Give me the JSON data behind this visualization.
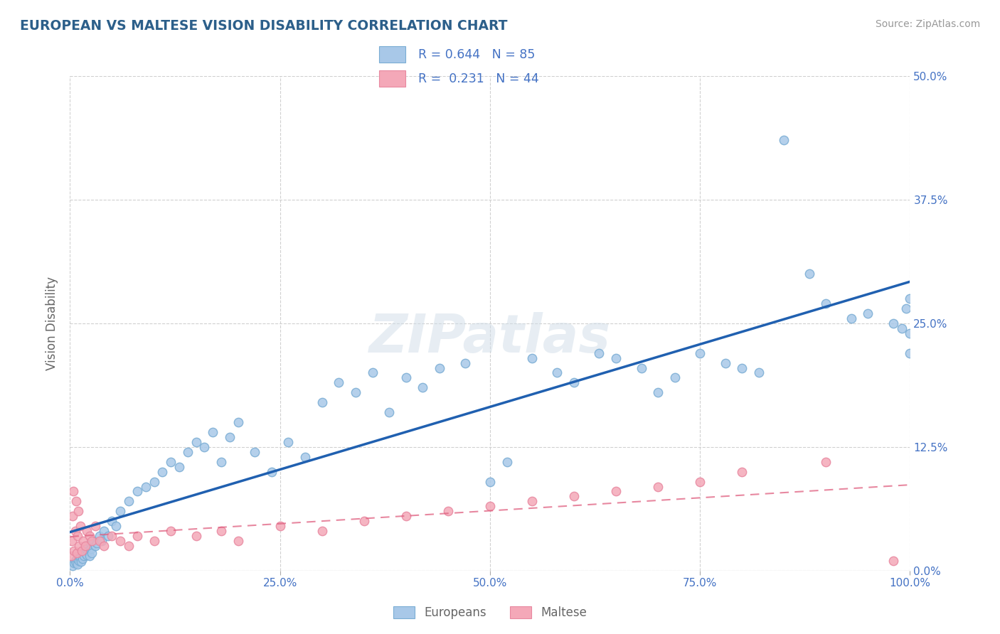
{
  "title": "EUROPEAN VS MALTESE VISION DISABILITY CORRELATION CHART",
  "source": "Source: ZipAtlas.com",
  "ylabel": "Vision Disability",
  "xlim": [
    0,
    100
  ],
  "ylim": [
    0,
    50
  ],
  "yticks": [
    0,
    12.5,
    25,
    37.5,
    50
  ],
  "xticks": [
    0,
    25,
    50,
    75,
    100
  ],
  "xtick_labels": [
    "0.0%",
    "25.0%",
    "50.0%",
    "75.0%",
    "100.0%"
  ],
  "ytick_labels": [
    "0.0%",
    "12.5%",
    "25.0%",
    "37.5%",
    "50.0%"
  ],
  "legend_labels": [
    "Europeans",
    "Maltese"
  ],
  "R_european": 0.644,
  "N_european": 85,
  "R_maltese": 0.231,
  "N_maltese": 44,
  "european_color": "#a8c8e8",
  "maltese_color": "#f4a8b8",
  "european_edge_color": "#7aadd4",
  "maltese_edge_color": "#e888a0",
  "european_line_color": "#2060b0",
  "maltese_line_color": "#e06080",
  "title_color": "#2c5f8a",
  "axis_label_color": "#666666",
  "tick_color": "#4472c4",
  "watermark": "ZIPatlas",
  "background_color": "#ffffff",
  "grid_color": "#d0d0d0",
  "eu_x": [
    0.3,
    0.5,
    0.6,
    0.7,
    0.8,
    0.9,
    1.0,
    1.1,
    1.2,
    1.3,
    1.4,
    1.5,
    1.6,
    1.7,
    1.8,
    1.9,
    2.0,
    2.1,
    2.2,
    2.3,
    2.4,
    2.5,
    2.6,
    2.8,
    3.0,
    3.2,
    3.5,
    3.8,
    4.0,
    4.5,
    5.0,
    5.5,
    6.0,
    7.0,
    8.0,
    9.0,
    10.0,
    11.0,
    12.0,
    13.0,
    14.0,
    15.0,
    16.0,
    17.0,
    18.0,
    19.0,
    20.0,
    22.0,
    24.0,
    26.0,
    28.0,
    30.0,
    32.0,
    34.0,
    36.0,
    38.0,
    40.0,
    42.0,
    44.0,
    47.0,
    50.0,
    52.0,
    55.0,
    58.0,
    60.0,
    63.0,
    65.0,
    68.0,
    70.0,
    72.0,
    75.0,
    78.0,
    80.0,
    82.0,
    85.0,
    88.0,
    90.0,
    93.0,
    95.0,
    98.0,
    99.0,
    99.5,
    100.0,
    100.0,
    100.0
  ],
  "eu_y": [
    0.5,
    0.8,
    1.0,
    0.8,
    1.2,
    0.6,
    1.5,
    1.0,
    1.3,
    0.9,
    1.8,
    1.2,
    2.0,
    1.5,
    1.8,
    2.2,
    1.6,
    2.5,
    2.0,
    1.5,
    2.8,
    2.2,
    1.8,
    3.0,
    2.5,
    2.8,
    3.5,
    3.0,
    4.0,
    3.5,
    5.0,
    4.5,
    6.0,
    7.0,
    8.0,
    8.5,
    9.0,
    10.0,
    11.0,
    10.5,
    12.0,
    13.0,
    12.5,
    14.0,
    11.0,
    13.5,
    15.0,
    12.0,
    10.0,
    13.0,
    11.5,
    17.0,
    19.0,
    18.0,
    20.0,
    16.0,
    19.5,
    18.5,
    20.5,
    21.0,
    9.0,
    11.0,
    21.5,
    20.0,
    19.0,
    22.0,
    21.5,
    20.5,
    18.0,
    19.5,
    22.0,
    21.0,
    20.5,
    20.0,
    43.5,
    30.0,
    27.0,
    25.5,
    26.0,
    25.0,
    24.5,
    26.5,
    27.5,
    22.0,
    24.0
  ],
  "mt_x": [
    0.1,
    0.2,
    0.3,
    0.4,
    0.5,
    0.6,
    0.7,
    0.8,
    0.9,
    1.0,
    1.1,
    1.2,
    1.4,
    1.6,
    1.8,
    2.0,
    2.3,
    2.6,
    3.0,
    3.5,
    4.0,
    5.0,
    6.0,
    7.0,
    8.0,
    10.0,
    12.0,
    15.0,
    18.0,
    20.0,
    25.0,
    30.0,
    35.0,
    40.0,
    45.0,
    50.0,
    55.0,
    60.0,
    65.0,
    70.0,
    75.0,
    80.0,
    90.0,
    98.0
  ],
  "mt_y": [
    1.5,
    3.0,
    5.5,
    8.0,
    2.0,
    4.0,
    7.0,
    1.8,
    3.5,
    6.0,
    2.5,
    4.5,
    2.0,
    3.0,
    2.5,
    4.0,
    3.5,
    3.0,
    4.5,
    3.0,
    2.5,
    3.5,
    3.0,
    2.5,
    3.5,
    3.0,
    4.0,
    3.5,
    4.0,
    3.0,
    4.5,
    4.0,
    5.0,
    5.5,
    6.0,
    6.5,
    7.0,
    7.5,
    8.0,
    8.5,
    9.0,
    10.0,
    11.0,
    1.0
  ]
}
